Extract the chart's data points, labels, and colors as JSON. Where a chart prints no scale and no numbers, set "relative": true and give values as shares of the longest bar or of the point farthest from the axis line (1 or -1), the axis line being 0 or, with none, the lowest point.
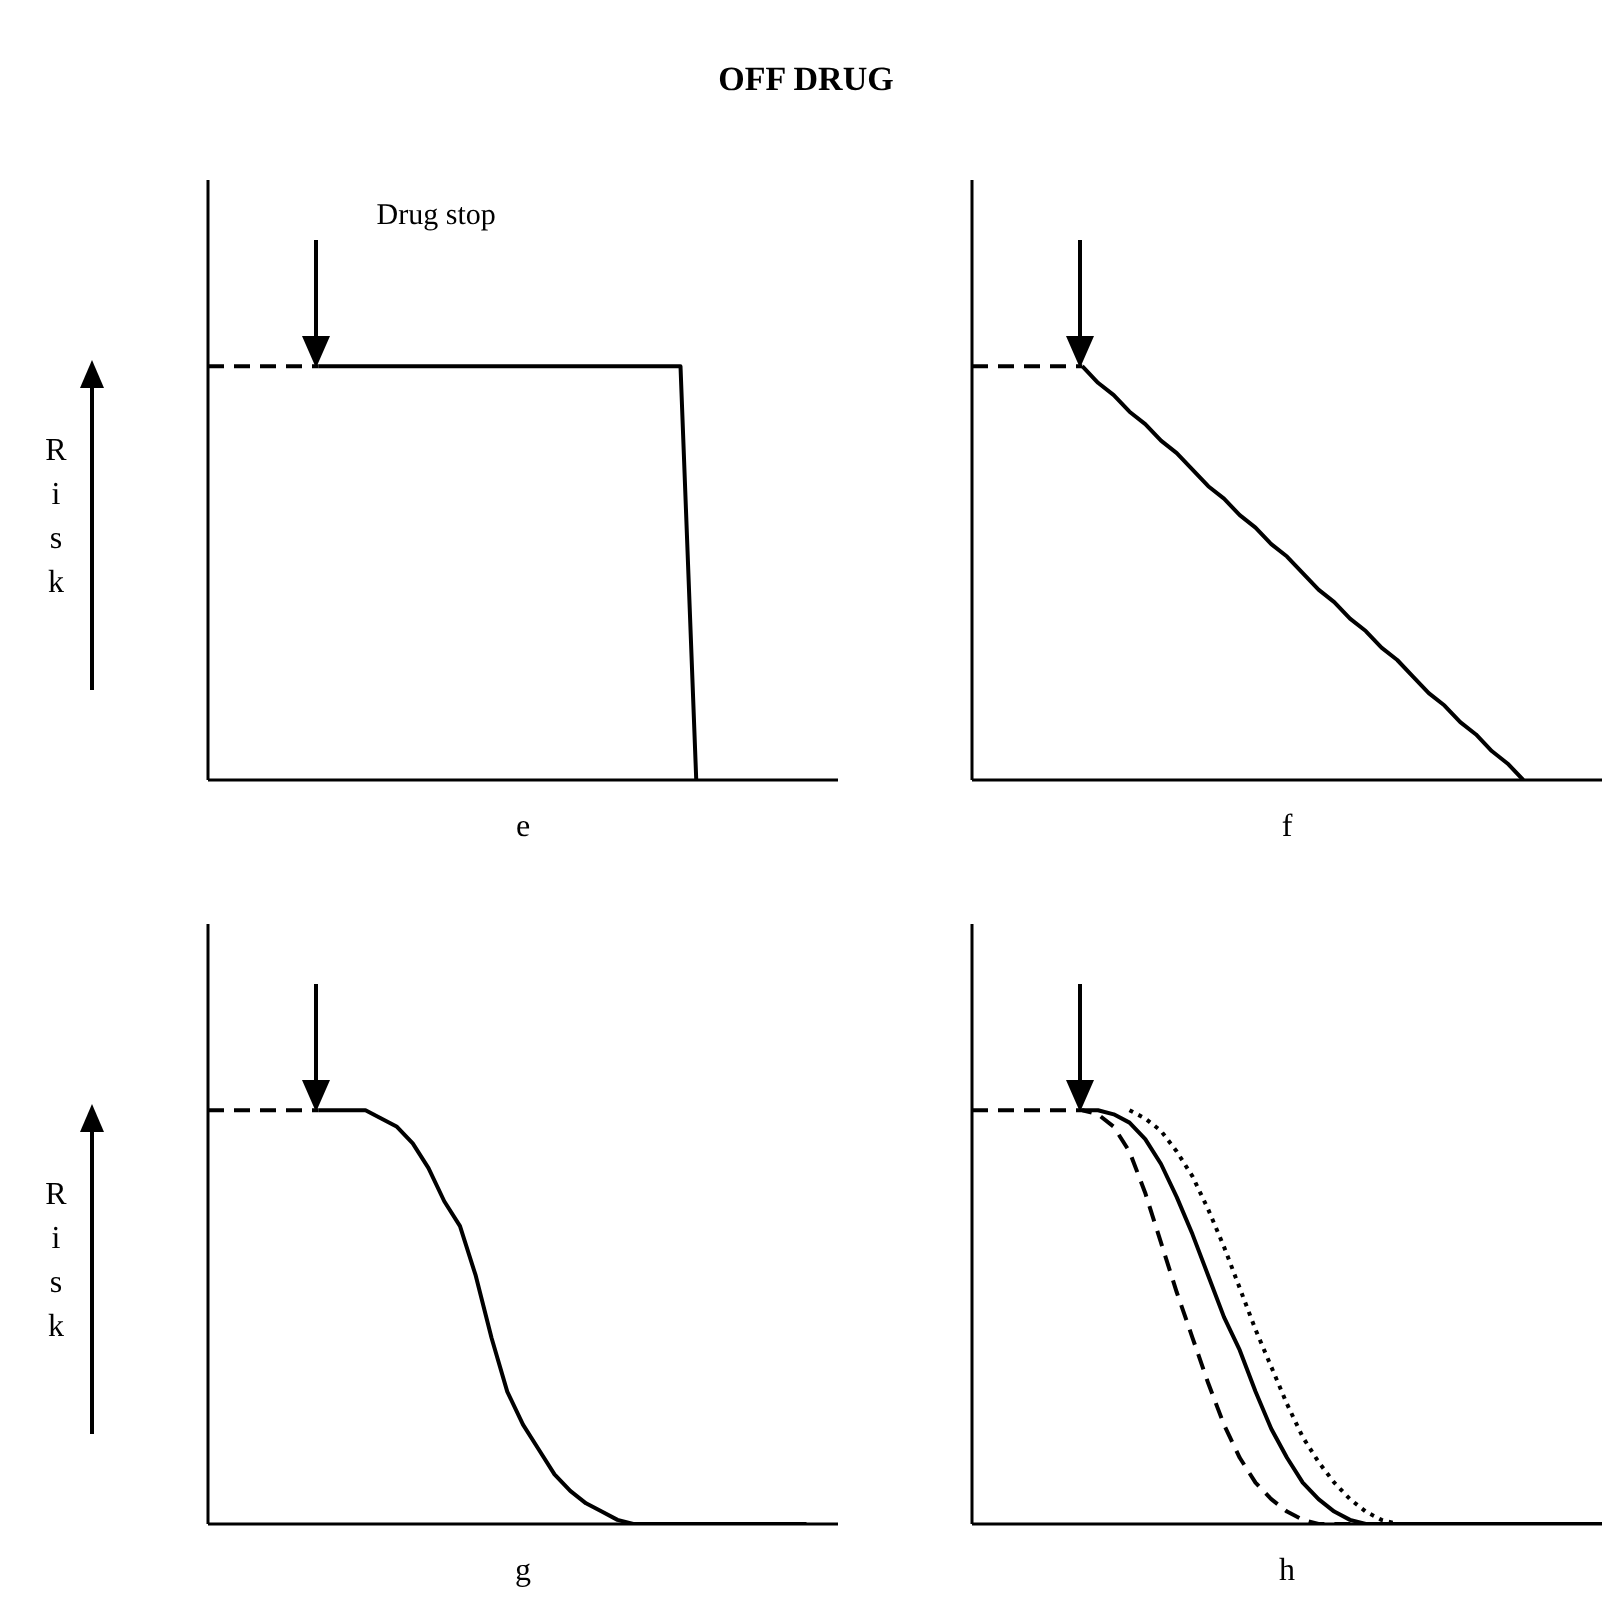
{
  "chart_data": [
    {
      "type": "line",
      "title": "OFF DRUG",
      "relative": true,
      "xlabel": "e",
      "ylabel": "Risk",
      "annotations": [
        "Drug stop"
      ],
      "categories": [
        null,
        null,
        null,
        null,
        null,
        null,
        null,
        null,
        null,
        null,
        null,
        null,
        null,
        null,
        null,
        null,
        null,
        null,
        null,
        null,
        null,
        null,
        null,
        null,
        null,
        null,
        null,
        null,
        null,
        null,
        null,
        null,
        null,
        null,
        null,
        null,
        null,
        null,
        null,
        null,
        null
      ],
      "series": [
        {
          "color": "#000000",
          "line_style": "dashed",
          "values": [
            1,
            1,
            1,
            1,
            1,
            1,
            1,
            1,
            null,
            null,
            null,
            null,
            null,
            null,
            null,
            null,
            null,
            null,
            null,
            null,
            null,
            null,
            null,
            null,
            null,
            null,
            null,
            null,
            null,
            null,
            null,
            null,
            null,
            null,
            null,
            null,
            null,
            null,
            null,
            null,
            null
          ]
        },
        {
          "color": "#000000",
          "line_style": "solid",
          "values": [
            null,
            null,
            null,
            null,
            null,
            null,
            null,
            1,
            1,
            1,
            1,
            1,
            1,
            1,
            1,
            1,
            1,
            1,
            1,
            1,
            1,
            1,
            1,
            1,
            1,
            1,
            1,
            1,
            1,
            1,
            1,
            0,
            null,
            null,
            null,
            null,
            null,
            null,
            null,
            null,
            null
          ]
        }
      ]
    },
    {
      "type": "line",
      "relative": true,
      "xlabel": "f",
      "categories": [
        null,
        null,
        null,
        null,
        null,
        null,
        null,
        null,
        null,
        null,
        null,
        null,
        null,
        null,
        null,
        null,
        null,
        null,
        null,
        null,
        null,
        null,
        null,
        null,
        null,
        null,
        null,
        null,
        null,
        null,
        null,
        null,
        null,
        null,
        null,
        null,
        null,
        null,
        null,
        null,
        null
      ],
      "series": [
        {
          "color": "#000000",
          "line_style": "dashed",
          "values": [
            1,
            1,
            1,
            1,
            1,
            1,
            1,
            1,
            null,
            null,
            null,
            null,
            null,
            null,
            null,
            null,
            null,
            null,
            null,
            null,
            null,
            null,
            null,
            null,
            null,
            null,
            null,
            null,
            null,
            null,
            null,
            null,
            null,
            null,
            null,
            null,
            null,
            null,
            null,
            null,
            null
          ]
        },
        {
          "color": "#000000",
          "line_style": "solid",
          "values": [
            null,
            null,
            null,
            null,
            null,
            null,
            null,
            1,
            0.96,
            0.93,
            0.89,
            0.86,
            0.82,
            0.79,
            0.75,
            0.71,
            0.68,
            0.64,
            0.61,
            0.57,
            0.54,
            0.5,
            0.46,
            0.43,
            0.39,
            0.36,
            0.32,
            0.29,
            0.25,
            0.21,
            0.18,
            0.14,
            0.11,
            0.07,
            0.04,
            0,
            null,
            null,
            null,
            null,
            null
          ]
        }
      ]
    },
    {
      "type": "line",
      "relative": true,
      "xlabel": "g",
      "ylabel": "Risk",
      "categories": [
        null,
        null,
        null,
        null,
        null,
        null,
        null,
        null,
        null,
        null,
        null,
        null,
        null,
        null,
        null,
        null,
        null,
        null,
        null,
        null,
        null,
        null,
        null,
        null,
        null,
        null,
        null,
        null,
        null,
        null,
        null,
        null,
        null,
        null,
        null,
        null,
        null,
        null,
        null,
        null,
        null
      ],
      "series": [
        {
          "color": "#000000",
          "line_style": "dashed",
          "values": [
            1,
            1,
            1,
            1,
            1,
            1,
            1,
            1,
            null,
            null,
            null,
            null,
            null,
            null,
            null,
            null,
            null,
            null,
            null,
            null,
            null,
            null,
            null,
            null,
            null,
            null,
            null,
            null,
            null,
            null,
            null,
            null,
            null,
            null,
            null,
            null,
            null,
            null,
            null,
            null,
            null
          ]
        },
        {
          "color": "#000000",
          "line_style": "solid",
          "values": [
            null,
            null,
            null,
            null,
            null,
            null,
            null,
            1,
            1,
            1,
            1,
            0.98,
            0.96,
            0.92,
            0.86,
            0.78,
            0.72,
            0.6,
            0.45,
            0.32,
            0.24,
            0.18,
            0.12,
            0.08,
            0.05,
            0.03,
            0.01,
            0,
            0,
            0,
            0,
            0,
            0,
            0,
            0,
            0,
            0,
            0,
            0,
            null,
            null
          ]
        }
      ]
    },
    {
      "type": "line",
      "relative": true,
      "xlabel": "h",
      "categories": [
        null,
        null,
        null,
        null,
        null,
        null,
        null,
        null,
        null,
        null,
        null,
        null,
        null,
        null,
        null,
        null,
        null,
        null,
        null,
        null,
        null,
        null,
        null,
        null,
        null,
        null,
        null,
        null,
        null,
        null,
        null,
        null,
        null,
        null,
        null,
        null,
        null,
        null,
        null,
        null,
        null
      ],
      "series": [
        {
          "color": "#000000",
          "line_style": "dashed",
          "values": [
            1,
            1,
            1,
            1,
            1,
            1,
            1,
            1,
            0.99,
            0.96,
            0.9,
            0.8,
            0.68,
            0.56,
            0.45,
            0.34,
            0.24,
            0.16,
            0.1,
            0.06,
            0.03,
            0.01,
            0,
            0,
            0,
            0,
            0,
            0,
            0,
            0,
            0,
            0,
            0,
            0,
            0,
            0,
            0,
            0,
            0,
            0,
            0
          ]
        },
        {
          "color": "#000000",
          "line_style": "solid",
          "values": [
            null,
            null,
            null,
            null,
            null,
            null,
            null,
            1,
            1,
            0.99,
            0.97,
            0.93,
            0.87,
            0.79,
            0.7,
            0.6,
            0.5,
            0.42,
            0.32,
            0.23,
            0.16,
            0.1,
            0.06,
            0.03,
            0.01,
            0,
            0,
            0,
            0,
            0,
            0,
            0,
            0,
            0,
            0,
            0,
            0,
            0,
            0,
            0,
            0
          ]
        },
        {
          "color": "#000000",
          "line_style": "dotted",
          "values": [
            null,
            null,
            null,
            null,
            null,
            null,
            null,
            null,
            null,
            null,
            1,
            0.98,
            0.95,
            0.9,
            0.84,
            0.76,
            0.67,
            0.57,
            0.47,
            0.38,
            0.29,
            0.21,
            0.15,
            0.1,
            0.06,
            0.03,
            0.01,
            0,
            0,
            0,
            0,
            0,
            0,
            0,
            0,
            0,
            0,
            0,
            0,
            0,
            0
          ]
        }
      ]
    }
  ]
}
